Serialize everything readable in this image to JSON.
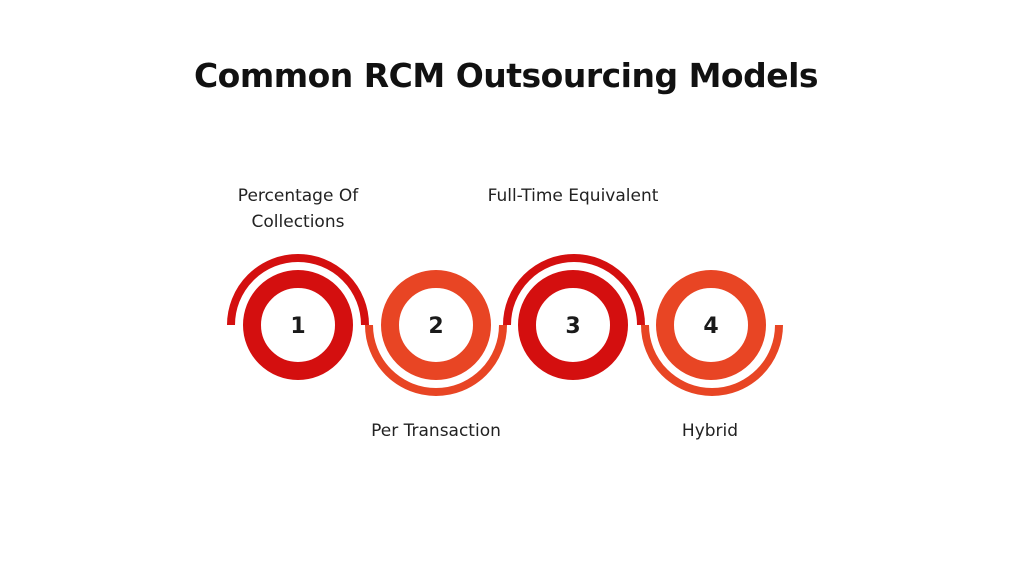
{
  "title": "Common RCM Outsourcing Models",
  "colors": {
    "dark_red": "#d40f0f",
    "orange_red": "#e84524"
  },
  "steps": [
    {
      "number": "1",
      "label": "Percentage Of Collections",
      "color": "#d40f0f"
    },
    {
      "number": "2",
      "label": "Per Transaction",
      "color": "#e84524"
    },
    {
      "number": "3",
      "label": "Full-Time Equivalent",
      "color": "#d40f0f"
    },
    {
      "number": "4",
      "label": "Hybrid",
      "color": "#e84524"
    }
  ]
}
